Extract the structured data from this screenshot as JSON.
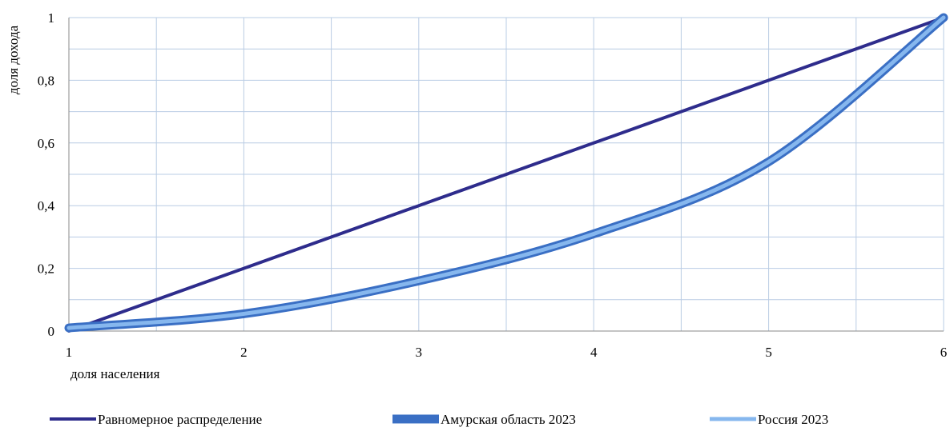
{
  "chart_data": {
    "type": "line",
    "xlabel": "доля населения",
    "ylabel": "доля дохода",
    "x": [
      1,
      2,
      3,
      4,
      5,
      6
    ],
    "xlim": [
      1,
      6
    ],
    "ylim": [
      0,
      1
    ],
    "x_ticks": [
      "1",
      "2",
      "3",
      "4",
      "5",
      "6"
    ],
    "y_ticks": [
      "0",
      "0,2",
      "0,4",
      "0,6",
      "0,8",
      "1"
    ],
    "grid": true,
    "legend_position": "bottom",
    "series": [
      {
        "name": "Равномерное распределение",
        "values": [
          0,
          0.2,
          0.4,
          0.6,
          0.8,
          1.0
        ],
        "color": "#2e2c8c",
        "width": "thin"
      },
      {
        "name": "Амурская область 2023",
        "values": [
          0.01,
          0.055,
          0.16,
          0.31,
          0.54,
          1.0
        ],
        "color": "#3a6fc4",
        "width": "thick"
      },
      {
        "name": "Россия 2023",
        "values": [
          0.01,
          0.055,
          0.16,
          0.31,
          0.54,
          1.0
        ],
        "color": "#86b7ee",
        "width": "medium"
      }
    ]
  }
}
